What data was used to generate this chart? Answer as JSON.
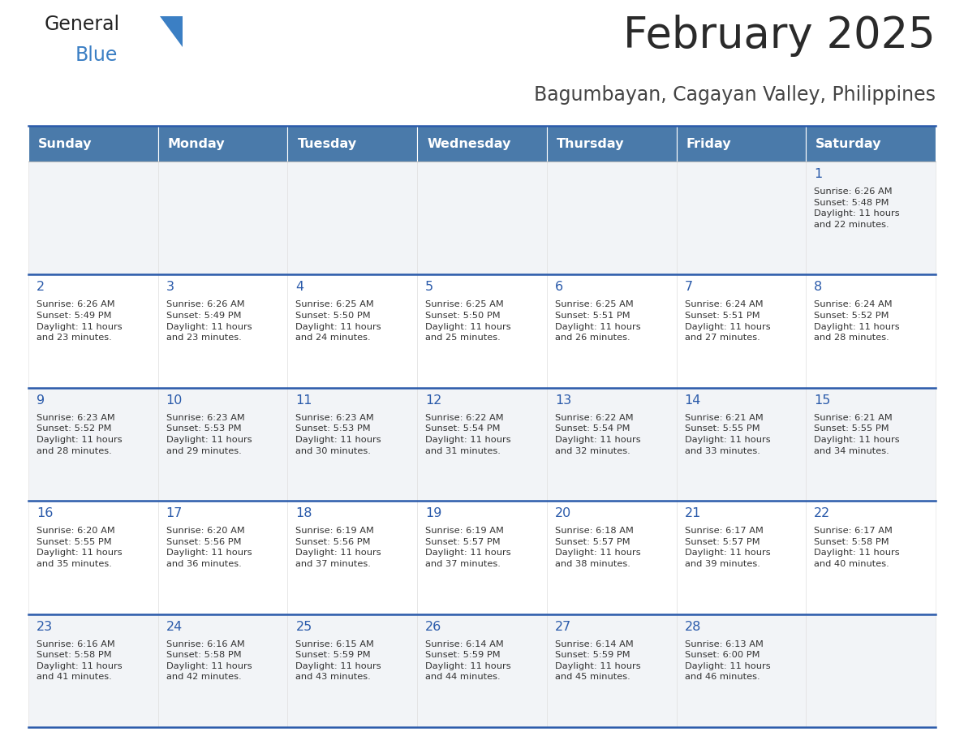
{
  "title": "February 2025",
  "subtitle": "Bagumbayan, Cagayan Valley, Philippines",
  "header_bg": "#4a7aaa",
  "header_text_color": "#ffffff",
  "day_number_color": "#2a5aaa",
  "text_color": "#333333",
  "border_color": "#2a5aaa",
  "days_of_week": [
    "Sunday",
    "Monday",
    "Tuesday",
    "Wednesday",
    "Thursday",
    "Friday",
    "Saturday"
  ],
  "calendar": [
    [
      null,
      null,
      null,
      null,
      null,
      null,
      {
        "day": "1",
        "sunrise": "6:26 AM",
        "sunset": "5:48 PM",
        "daylight": "11 hours\nand 22 minutes."
      }
    ],
    [
      {
        "day": "2",
        "sunrise": "6:26 AM",
        "sunset": "5:49 PM",
        "daylight": "11 hours\nand 23 minutes."
      },
      {
        "day": "3",
        "sunrise": "6:26 AM",
        "sunset": "5:49 PM",
        "daylight": "11 hours\nand 23 minutes."
      },
      {
        "day": "4",
        "sunrise": "6:25 AM",
        "sunset": "5:50 PM",
        "daylight": "11 hours\nand 24 minutes."
      },
      {
        "day": "5",
        "sunrise": "6:25 AM",
        "sunset": "5:50 PM",
        "daylight": "11 hours\nand 25 minutes."
      },
      {
        "day": "6",
        "sunrise": "6:25 AM",
        "sunset": "5:51 PM",
        "daylight": "11 hours\nand 26 minutes."
      },
      {
        "day": "7",
        "sunrise": "6:24 AM",
        "sunset": "5:51 PM",
        "daylight": "11 hours\nand 27 minutes."
      },
      {
        "day": "8",
        "sunrise": "6:24 AM",
        "sunset": "5:52 PM",
        "daylight": "11 hours\nand 28 minutes."
      }
    ],
    [
      {
        "day": "9",
        "sunrise": "6:23 AM",
        "sunset": "5:52 PM",
        "daylight": "11 hours\nand 28 minutes."
      },
      {
        "day": "10",
        "sunrise": "6:23 AM",
        "sunset": "5:53 PM",
        "daylight": "11 hours\nand 29 minutes."
      },
      {
        "day": "11",
        "sunrise": "6:23 AM",
        "sunset": "5:53 PM",
        "daylight": "11 hours\nand 30 minutes."
      },
      {
        "day": "12",
        "sunrise": "6:22 AM",
        "sunset": "5:54 PM",
        "daylight": "11 hours\nand 31 minutes."
      },
      {
        "day": "13",
        "sunrise": "6:22 AM",
        "sunset": "5:54 PM",
        "daylight": "11 hours\nand 32 minutes."
      },
      {
        "day": "14",
        "sunrise": "6:21 AM",
        "sunset": "5:55 PM",
        "daylight": "11 hours\nand 33 minutes."
      },
      {
        "day": "15",
        "sunrise": "6:21 AM",
        "sunset": "5:55 PM",
        "daylight": "11 hours\nand 34 minutes."
      }
    ],
    [
      {
        "day": "16",
        "sunrise": "6:20 AM",
        "sunset": "5:55 PM",
        "daylight": "11 hours\nand 35 minutes."
      },
      {
        "day": "17",
        "sunrise": "6:20 AM",
        "sunset": "5:56 PM",
        "daylight": "11 hours\nand 36 minutes."
      },
      {
        "day": "18",
        "sunrise": "6:19 AM",
        "sunset": "5:56 PM",
        "daylight": "11 hours\nand 37 minutes."
      },
      {
        "day": "19",
        "sunrise": "6:19 AM",
        "sunset": "5:57 PM",
        "daylight": "11 hours\nand 37 minutes."
      },
      {
        "day": "20",
        "sunrise": "6:18 AM",
        "sunset": "5:57 PM",
        "daylight": "11 hours\nand 38 minutes."
      },
      {
        "day": "21",
        "sunrise": "6:17 AM",
        "sunset": "5:57 PM",
        "daylight": "11 hours\nand 39 minutes."
      },
      {
        "day": "22",
        "sunrise": "6:17 AM",
        "sunset": "5:58 PM",
        "daylight": "11 hours\nand 40 minutes."
      }
    ],
    [
      {
        "day": "23",
        "sunrise": "6:16 AM",
        "sunset": "5:58 PM",
        "daylight": "11 hours\nand 41 minutes."
      },
      {
        "day": "24",
        "sunrise": "6:16 AM",
        "sunset": "5:58 PM",
        "daylight": "11 hours\nand 42 minutes."
      },
      {
        "day": "25",
        "sunrise": "6:15 AM",
        "sunset": "5:59 PM",
        "daylight": "11 hours\nand 43 minutes."
      },
      {
        "day": "26",
        "sunrise": "6:14 AM",
        "sunset": "5:59 PM",
        "daylight": "11 hours\nand 44 minutes."
      },
      {
        "day": "27",
        "sunrise": "6:14 AM",
        "sunset": "5:59 PM",
        "daylight": "11 hours\nand 45 minutes."
      },
      {
        "day": "28",
        "sunrise": "6:13 AM",
        "sunset": "6:00 PM",
        "daylight": "11 hours\nand 46 minutes."
      },
      null
    ]
  ]
}
